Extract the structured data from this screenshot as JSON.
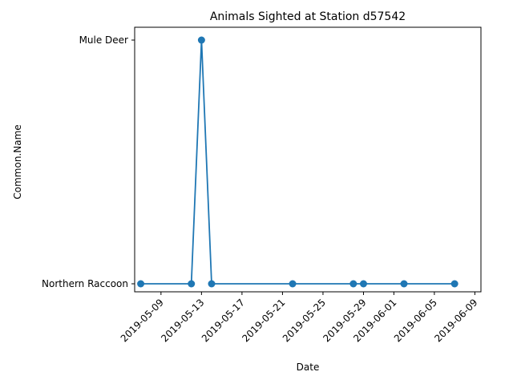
{
  "chart_data": {
    "type": "line",
    "title": "Animals Sighted at Station d57542",
    "xlabel": "Date",
    "ylabel": "Common.Name",
    "y_categories": [
      "Northern Raccoon",
      "Mule Deer"
    ],
    "x_ticks": [
      "2019-05-09",
      "2019-05-13",
      "2019-05-17",
      "2019-05-21",
      "2019-05-25",
      "2019-05-29",
      "2019-06-01",
      "2019-06-05",
      "2019-06-09"
    ],
    "xlim": [
      "2019-05-06",
      "2019-06-10"
    ],
    "grid": false,
    "series": [
      {
        "color": "#1f77b4",
        "marker": "circle",
        "points": [
          {
            "x": "2019-05-07",
            "y": "Northern Raccoon"
          },
          {
            "x": "2019-05-12",
            "y": "Northern Raccoon"
          },
          {
            "x": "2019-05-13",
            "y": "Mule Deer"
          },
          {
            "x": "2019-05-14",
            "y": "Northern Raccoon"
          },
          {
            "x": "2019-05-22",
            "y": "Northern Raccoon"
          },
          {
            "x": "2019-05-28",
            "y": "Northern Raccoon"
          },
          {
            "x": "2019-05-29",
            "y": "Northern Raccoon"
          },
          {
            "x": "2019-06-02",
            "y": "Northern Raccoon"
          },
          {
            "x": "2019-06-07",
            "y": "Northern Raccoon"
          }
        ]
      }
    ]
  }
}
